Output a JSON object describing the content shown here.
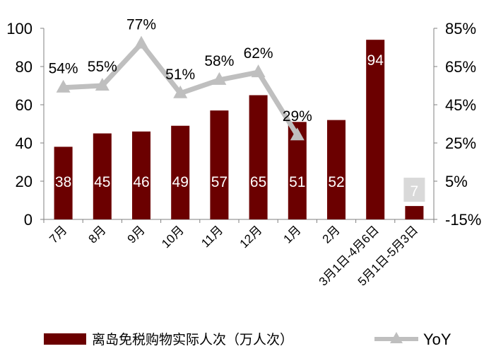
{
  "chart_data": {
    "type": "bar",
    "categories": [
      "7月",
      "8月",
      "9月",
      "10月",
      "11月",
      "12月",
      "1月",
      "2月",
      "3月1日-4月6日",
      "5月1日-5月3日"
    ],
    "series": [
      {
        "name": "离岛免税购物实际人次（万人次）",
        "type": "bar",
        "axis": "left",
        "values": [
          38,
          45,
          46,
          49,
          57,
          65,
          51,
          52,
          94,
          7
        ],
        "data_labels": [
          "38",
          "45",
          "46",
          "49",
          "57",
          "65",
          "51",
          "52",
          "94",
          "7"
        ]
      },
      {
        "name": "YoY",
        "type": "line",
        "axis": "right",
        "values": [
          54,
          55,
          77,
          51,
          58,
          62,
          29,
          null,
          null,
          null
        ],
        "data_labels": [
          "54%",
          "55%",
          "77%",
          "51%",
          "58%",
          "62%",
          "29%",
          "",
          "",
          ""
        ]
      }
    ],
    "y_left": {
      "min": 0,
      "max": 100,
      "ticks": [
        "0",
        "20",
        "40",
        "60",
        "80",
        "100"
      ]
    },
    "y_right": {
      "min": -15,
      "max": 85,
      "ticks": [
        "-15%",
        "5%",
        "25%",
        "45%",
        "65%",
        "85%"
      ]
    },
    "legend_position": "bottom",
    "grid": false,
    "colors": {
      "bar": "#6b0000",
      "line": "#bfbfbf",
      "bar_label": "#ffffff",
      "last_label_box": "#d9d9d9",
      "axis": "#808080",
      "text": "#000000"
    }
  }
}
